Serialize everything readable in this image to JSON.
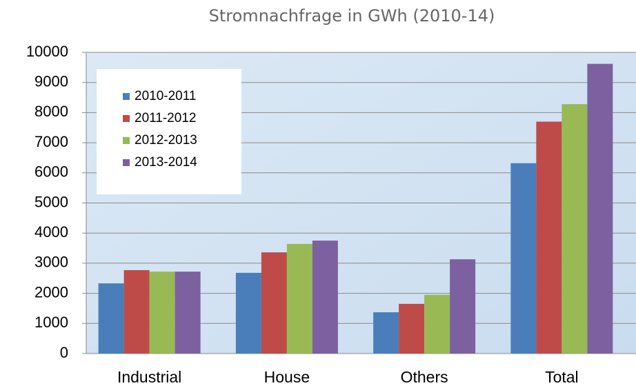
{
  "chart_data": {
    "type": "bar",
    "title": "Stromnachfrage in GWh (2010-14)",
    "categories": [
      "Industrial",
      "House",
      "Others",
      "Total"
    ],
    "series": [
      {
        "name": "2010-2011",
        "color": "#4a7ebb",
        "values": [
          2330,
          2680,
          1370,
          6320
        ]
      },
      {
        "name": "2011-2012",
        "color": "#be4b48",
        "values": [
          2770,
          3360,
          1650,
          7700
        ]
      },
      {
        "name": "2012-2013",
        "color": "#98b954",
        "values": [
          2720,
          3640,
          1950,
          8280
        ]
      },
      {
        "name": "2013-2014",
        "color": "#7d60a0",
        "values": [
          2720,
          3750,
          3130,
          9620
        ]
      }
    ],
    "ylim": [
      0,
      10000
    ],
    "yticks": [
      0,
      1000,
      2000,
      3000,
      4000,
      5000,
      6000,
      7000,
      8000,
      9000,
      10000
    ],
    "grid": true,
    "legend": "upper left"
  }
}
